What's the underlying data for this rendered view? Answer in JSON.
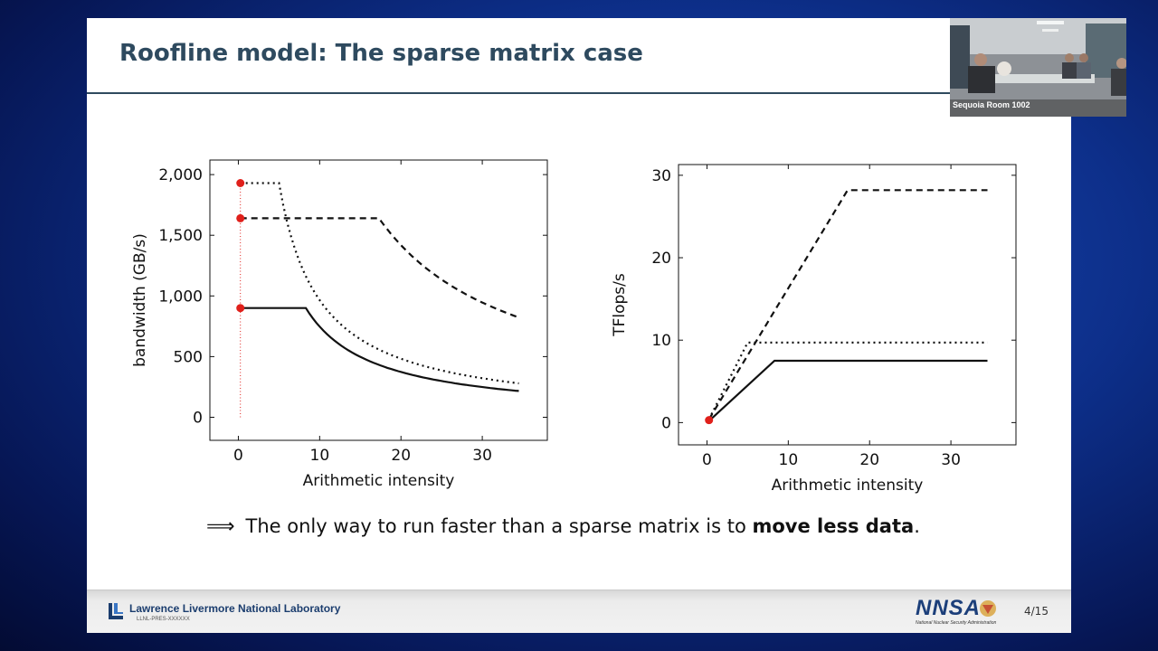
{
  "slide": {
    "title": "Roofline model:  The sparse matrix case",
    "conclusion": {
      "arrow": "⟹",
      "text_before": "The only way to run faster than a sparse matrix is to ",
      "bold": "move less data",
      "text_after": "."
    },
    "footer": {
      "lab_name": "Lawrence Livermore National Laboratory",
      "doc_code": "LLNL-PRES-XXXXXX",
      "nnsa_letters": "NNSA",
      "nnsa_subtitle": "National Nuclear Security Administration",
      "page": "4/15"
    }
  },
  "video": {
    "room_label": "Sequoia Room 1002"
  },
  "colors": {
    "title": "#2e4a5f",
    "marker": "#e0201b",
    "line": "#111111",
    "footer_brand": "#1b3d6e"
  },
  "chart_data": [
    {
      "type": "line",
      "xlabel": "Arithmetic intensity",
      "ylabel": "bandwidth (GB/s)",
      "xlim": [
        -3.5,
        38
      ],
      "ylim": [
        -190,
        2120
      ],
      "xticks": [
        0,
        10,
        20,
        30
      ],
      "xtick_labels": [
        "0",
        "10",
        "20",
        "30"
      ],
      "yticks": [
        0,
        500,
        1000,
        1500,
        2000
      ],
      "ytick_labels": [
        "0",
        "500",
        "1,000",
        "1,500",
        "2,000"
      ],
      "grid": false,
      "series": [
        {
          "style": "solid",
          "peak": 900,
          "knee": 8.3,
          "x_end": 34.5,
          "start_x": 0.25
        },
        {
          "style": "dotted",
          "peak": 1930,
          "knee": 5.0,
          "x_end": 34.5,
          "start_x": 0.25
        },
        {
          "style": "dashed",
          "peak": 1640,
          "knee": 17.3,
          "x_end": 34.5,
          "start_x": 0.25
        }
      ],
      "markers": [
        {
          "x": 0.25,
          "y": 1930
        },
        {
          "x": 0.25,
          "y": 1640
        },
        {
          "x": 0.25,
          "y": 900
        }
      ],
      "reference_line": {
        "x": 0.25,
        "y_from": 0,
        "y_to": 1930,
        "style": "dotted",
        "color": "#e0201b"
      }
    },
    {
      "type": "line",
      "xlabel": "Arithmetic intensity",
      "ylabel": "TFlops/s",
      "xlim": [
        -3.5,
        38
      ],
      "ylim": [
        -2.7,
        31.3
      ],
      "xticks": [
        0,
        10,
        20,
        30
      ],
      "xtick_labels": [
        "0",
        "10",
        "20",
        "30"
      ],
      "yticks": [
        0,
        10,
        20,
        30
      ],
      "ytick_labels": [
        "0",
        "10",
        "20",
        "30"
      ],
      "grid": false,
      "series": [
        {
          "style": "solid",
          "points": [
            [
              0.25,
              0.2
            ],
            [
              8.3,
              7.5
            ],
            [
              34.5,
              7.5
            ]
          ]
        },
        {
          "style": "dotted",
          "points": [
            [
              0.25,
              0.4
            ],
            [
              5.0,
              9.7
            ],
            [
              34.5,
              9.7
            ]
          ]
        },
        {
          "style": "dashed",
          "points": [
            [
              0.25,
              0.4
            ],
            [
              17.3,
              28.2
            ],
            [
              34.5,
              28.2
            ]
          ]
        }
      ],
      "markers": [
        {
          "x": 0.25,
          "y": 0.3
        }
      ]
    }
  ]
}
